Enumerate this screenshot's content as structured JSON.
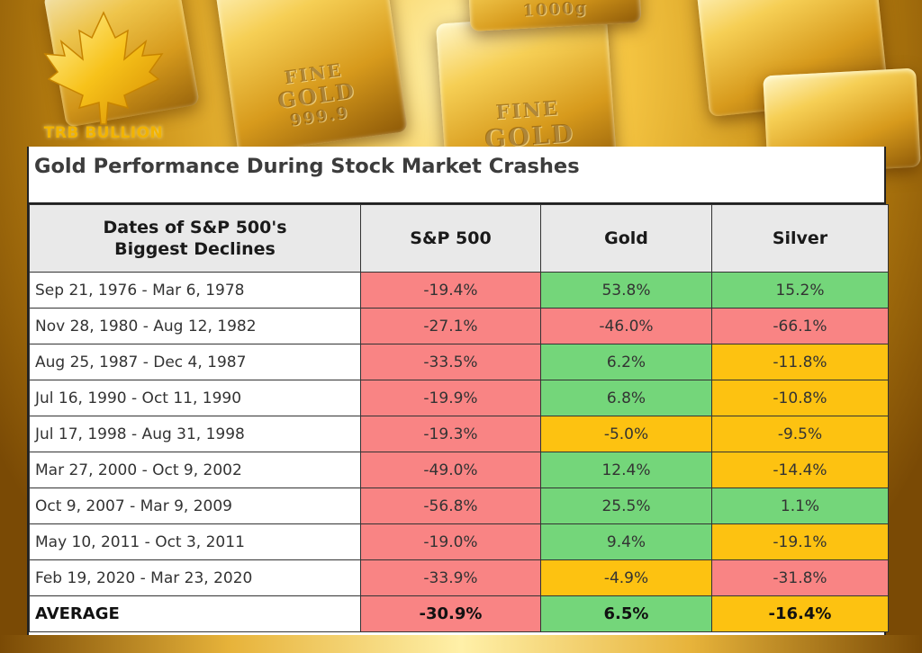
{
  "brand": {
    "name": "TRB BULLION"
  },
  "bars_text": [
    "FINE",
    "GOLD",
    "999.9",
    "FINE",
    "GOLD",
    "1000g"
  ],
  "table": {
    "title": "Gold Performance During Stock Market Crashes",
    "headers": {
      "dates_line1": "Dates of S&P 500's",
      "dates_line2": "Biggest Declines",
      "sp500": "S&P 500",
      "gold": "Gold",
      "silver": "Silver"
    },
    "rows": [
      {
        "date": "Sep 21, 1976 - Mar 6, 1978",
        "sp500": "-19.4%",
        "gold": "53.8%",
        "silver": "15.2%"
      },
      {
        "date": "Nov 28, 1980 - Aug 12, 1982",
        "sp500": "-27.1%",
        "gold": "-46.0%",
        "silver": "-66.1%"
      },
      {
        "date": "Aug 25, 1987 - Dec 4, 1987",
        "sp500": "-33.5%",
        "gold": "6.2%",
        "silver": "-11.8%"
      },
      {
        "date": "Jul 16, 1990 - Oct 11, 1990",
        "sp500": "-19.9%",
        "gold": "6.8%",
        "silver": "-10.8%"
      },
      {
        "date": "Jul 17, 1998 - Aug 31, 1998",
        "sp500": "-19.3%",
        "gold": "-5.0%",
        "silver": "-9.5%"
      },
      {
        "date": "Mar 27, 2000 - Oct 9, 2002",
        "sp500": "-49.0%",
        "gold": "12.4%",
        "silver": "-14.4%"
      },
      {
        "date": "Oct 9, 2007 - Mar 9, 2009",
        "sp500": "-56.8%",
        "gold": "25.5%",
        "silver": "1.1%"
      },
      {
        "date": "May 10, 2011 - Oct 3, 2011",
        "sp500": "-19.0%",
        "gold": "9.4%",
        "silver": "-19.1%"
      },
      {
        "date": "Feb 19, 2020 - Mar 23, 2020",
        "sp500": "-33.9%",
        "gold": "-4.9%",
        "silver": "-31.8%"
      }
    ],
    "average": {
      "label": "AVERAGE",
      "sp500": "-30.9%",
      "gold": "6.5%",
      "silver": "-16.4%"
    }
  },
  "colors": {
    "red": "#f98484",
    "green": "#74d67a",
    "amber": "#fdc211"
  }
}
